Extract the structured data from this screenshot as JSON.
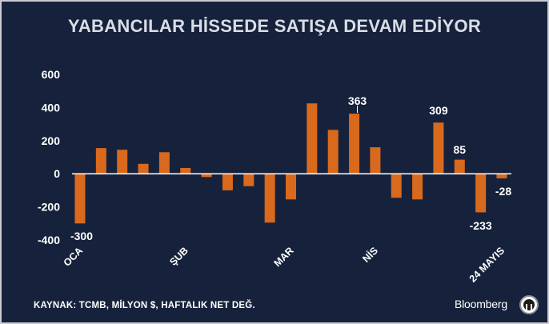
{
  "title": "YABANCILAR HİSSEDE SATIŞA DEVAM EDİYOR",
  "source": "KAYNAK: TCMB, MİLYON $, HAFTALIK NET DEĞ.",
  "brand": "Bloomberg",
  "colors": {
    "background": "#16223c",
    "bar": "#d9691c",
    "text": "#ffffff",
    "axis": "#ffffff"
  },
  "chart_data": {
    "type": "bar",
    "title": "YABANCILAR HİSSEDE SATIŞA DEVAM EDİYOR",
    "xlabel": "",
    "ylabel": "",
    "ylim": [
      -400,
      600
    ],
    "yticks": [
      -400,
      -200,
      0,
      200,
      400,
      600
    ],
    "ytick_labels": [
      "-400",
      "-200",
      "0",
      "200",
      "400",
      "600"
    ],
    "grid": false,
    "values": [
      -300,
      155,
      145,
      60,
      130,
      35,
      -20,
      -100,
      -75,
      -295,
      -155,
      425,
      265,
      363,
      160,
      -145,
      -155,
      309,
      85,
      -233,
      -28
    ],
    "category_labels": [
      {
        "index": 0,
        "text": "OCA"
      },
      {
        "index": 5,
        "text": "ŞUB"
      },
      {
        "index": 10,
        "text": "MAR"
      },
      {
        "index": 14,
        "text": "NİS"
      },
      {
        "index": 20,
        "text": "24 MAYIS"
      }
    ],
    "data_labels": [
      {
        "index": 0,
        "text": "-300"
      },
      {
        "index": 13,
        "text": "363"
      },
      {
        "index": 17,
        "text": "309"
      },
      {
        "index": 18,
        "text": "85"
      },
      {
        "index": 19,
        "text": "-233"
      },
      {
        "index": 20,
        "text": "-28"
      }
    ]
  }
}
